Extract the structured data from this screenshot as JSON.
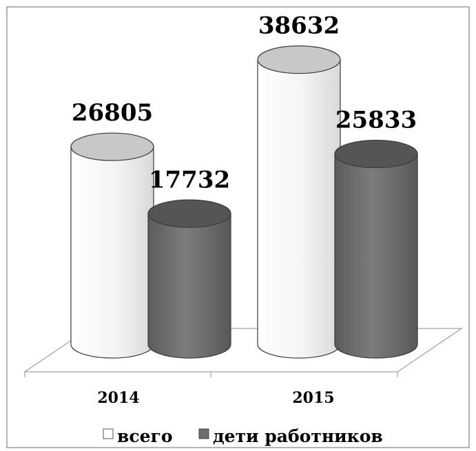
{
  "chart_data": {
    "type": "bar",
    "style": "3d-cylinder",
    "categories": [
      "2014",
      "2015"
    ],
    "series": [
      {
        "name": "всего",
        "values": [
          26805,
          38632
        ],
        "color": "#ffffff",
        "top_color": "#c8c8c8"
      },
      {
        "name": "дети работников",
        "values": [
          17732,
          25833
        ],
        "color": "#6e6e6e",
        "top_color": "#555555"
      }
    ],
    "value_labels": [
      "26805",
      "17732",
      "38632",
      "25833"
    ],
    "ylim": [
      0,
      40000
    ],
    "grid": false,
    "legend_position": "bottom",
    "frame_color": "#9a9a9a"
  }
}
